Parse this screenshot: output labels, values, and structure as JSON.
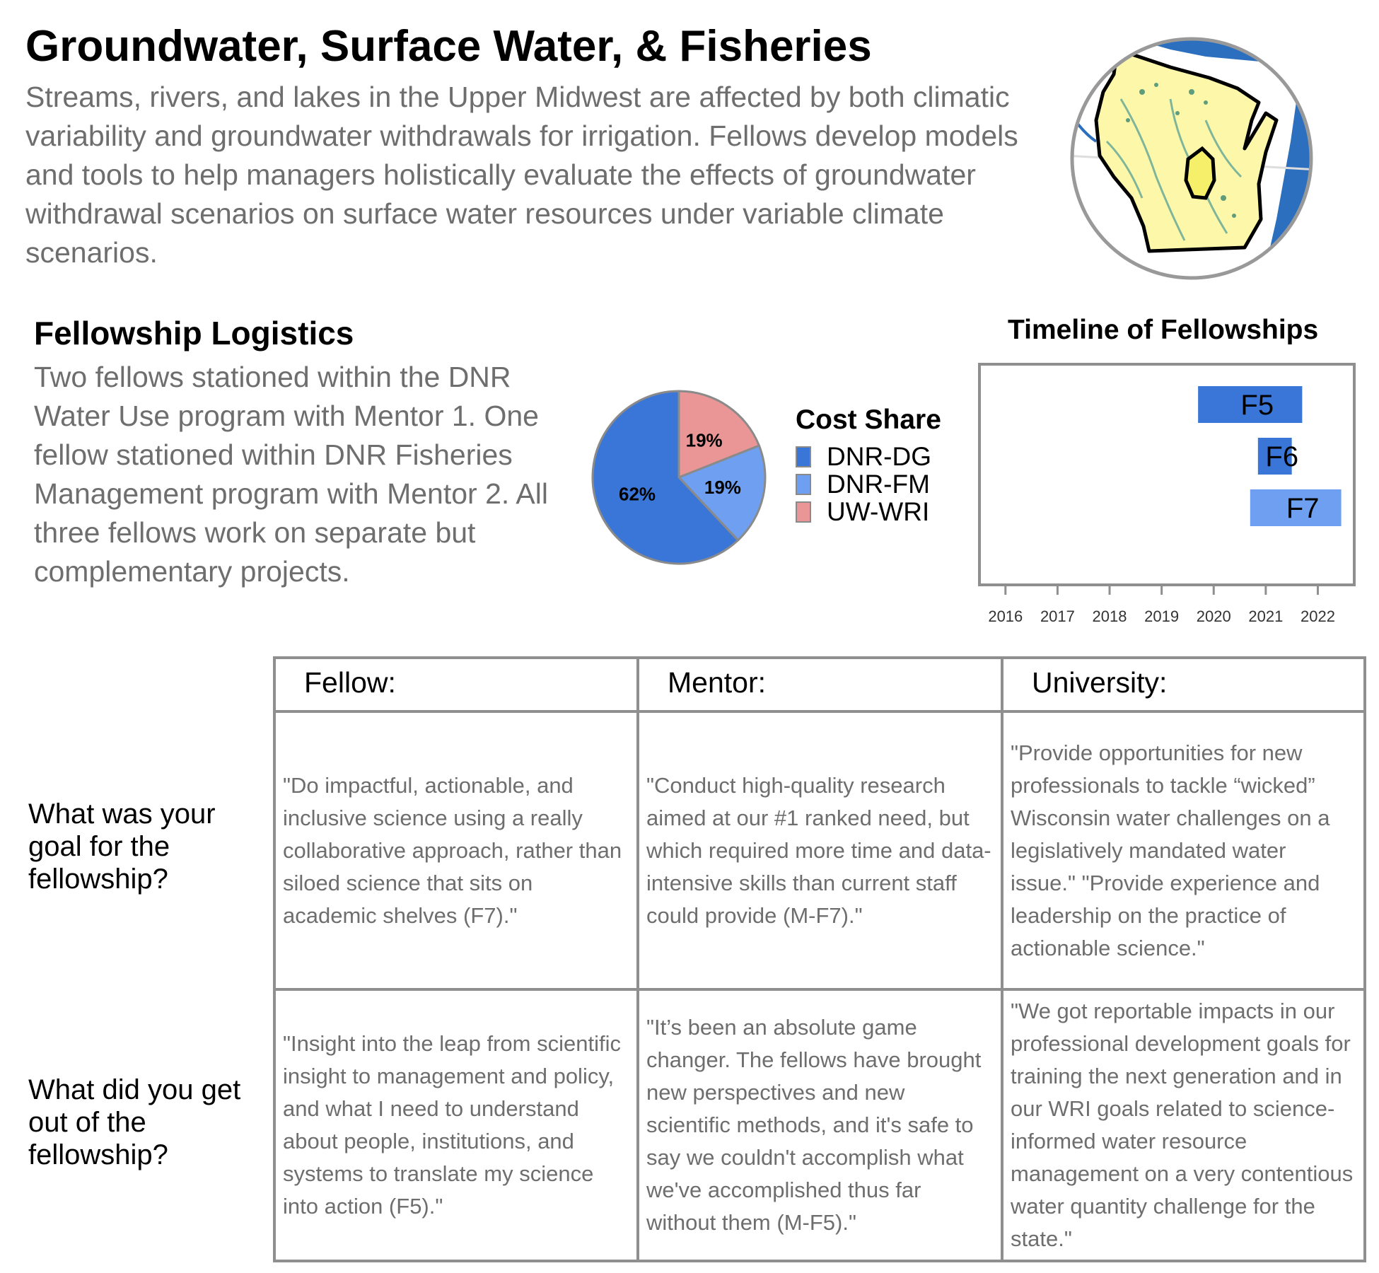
{
  "header": {
    "title": "Groundwater, Surface Water, & Fisheries",
    "intro": "Streams, rivers, and lakes in the Upper Midwest are affected by both climatic variability and groundwater withdrawals for irrigation. Fellows develop models and tools to help managers holistically evaluate the effects of groundwater withdrawal scenarios on surface water resources under variable climate scenarios."
  },
  "map": {
    "icon": "wisconsin-map-icon",
    "colors": {
      "land": "#fdf7a9",
      "water": "#2c6fbf",
      "rivers": "#7fb59a",
      "highlight": "#f5ef6a",
      "outline": "#000000"
    }
  },
  "logistics": {
    "heading": "Fellowship Logistics",
    "text": "Two fellows stationed within the DNR Water Use program with Mentor 1. One fellow stationed within DNR Fisheries Management program with Mentor 2. All three fellows work on separate but complementary projects."
  },
  "chart_data": [
    {
      "type": "pie",
      "title": "Cost Share",
      "legend_position": "right",
      "slices": [
        {
          "name": "DNR-DG",
          "value": 62,
          "label": "62%",
          "color": "#3a76d8"
        },
        {
          "name": "DNR-FM",
          "value": 19,
          "label": "19%",
          "color": "#6e9ff0"
        },
        {
          "name": "UW-WRI",
          "value": 19,
          "label": "19%",
          "color": "#ea9696"
        }
      ]
    },
    {
      "type": "bar",
      "orientation": "horizontal",
      "title": "Timeline of Fellowships",
      "x_ticks": [
        "2016",
        "2017",
        "2018",
        "2019",
        "2020",
        "2021",
        "2022"
      ],
      "xlim": [
        2015.5,
        2022.7
      ],
      "bars": [
        {
          "label": "F5",
          "start": 2019.7,
          "end": 2021.7,
          "color": "#3a76d8"
        },
        {
          "label": "F6",
          "start": 2020.85,
          "end": 2021.5,
          "color": "#3a76d8"
        },
        {
          "label": "F7",
          "start": 2020.7,
          "end": 2022.45,
          "color": "#6e9ff0"
        }
      ]
    }
  ],
  "table": {
    "columns": [
      "Fellow:",
      "Mentor:",
      "University:"
    ],
    "rows": [
      {
        "question": "What was your goal for the fellowship?",
        "cells": [
          "\"Do impactful, actionable, and inclusive science using a really collaborative approach, rather than siloed science that sits on academic shelves (F7).\"",
          "\"Conduct high-quality research aimed at our #1 ranked need, but which required more time and data-intensive skills than current staff could provide (M-F7).\"",
          "\"Provide opportunities for new professionals to tackle “wicked” Wisconsin water challenges on a legislatively mandated water issue.\" \"Provide experience and leadership on the practice of actionable science.\""
        ]
      },
      {
        "question": "What did you get out of the fellowship?",
        "cells": [
          "\"Insight into the leap from scientific insight to management and policy, and what I need to understand about people, institutions, and systems to translate my science into action (F5).\"",
          "\"It’s been an absolute game changer. The fellows have brought new perspectives and new scientific methods, and it's safe to say we couldn't accomplish what we've accomplished thus far without them (M-F5).\"",
          "\"We got reportable impacts in our professional development goals for training the next generation and in our WRI goals related to science-informed water resource management on a very contentious water quantity challenge for the state.\""
        ]
      }
    ]
  }
}
